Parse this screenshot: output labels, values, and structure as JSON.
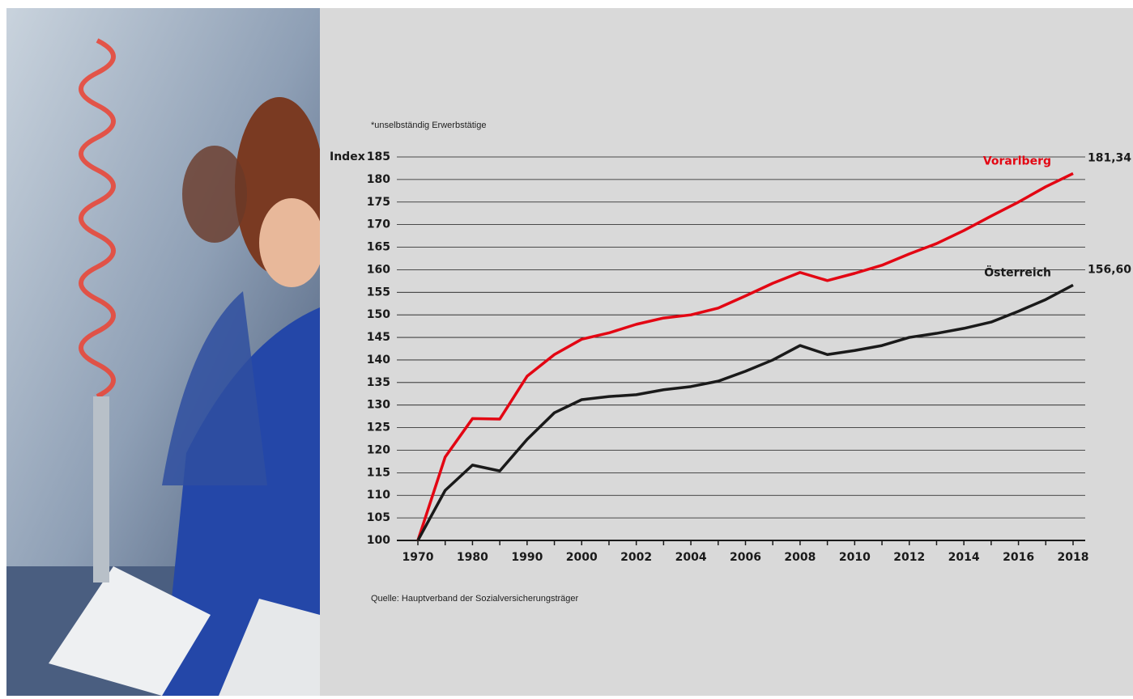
{
  "chart_data": {
    "type": "line",
    "note": "*unselbständig Erwerbstätige",
    "source": "Quelle: Hauptverband der Sozialversicherungsträger",
    "y_label": "Index",
    "categories": [
      "1970",
      null,
      "1980",
      null,
      "1990",
      null,
      "2000",
      null,
      "2002",
      null,
      "2004",
      null,
      "2006",
      null,
      "2008",
      null,
      "2010",
      null,
      "2012",
      null,
      "2014",
      null,
      "2016",
      null,
      "2018"
    ],
    "series": [
      {
        "name": "Vorarlberg",
        "color": "#e30613",
        "values": [
          100,
          118.5,
          127,
          126.9,
          136.4,
          141.2,
          144.6,
          146,
          147.9,
          149.3,
          150,
          151.5,
          154.2,
          157,
          159.4,
          157.6,
          159.2,
          161,
          163.5,
          165.8,
          168.7,
          171.9,
          175,
          178.4,
          181.34
        ],
        "value_labels": [
          null,
          null,
          null,
          null,
          null,
          null,
          null,
          null,
          null,
          null,
          null,
          null,
          null,
          null,
          null,
          null,
          null,
          null,
          null,
          null,
          null,
          null,
          null,
          null,
          "181,34"
        ]
      },
      {
        "name": "Österreich",
        "color": "#1a1a1a",
        "values": [
          100,
          111.1,
          116.7,
          115.4,
          122.4,
          128.3,
          131.2,
          131.9,
          132.3,
          133.4,
          134.1,
          135.3,
          137.5,
          140,
          143.2,
          141.2,
          142.1,
          143.2,
          145,
          145.9,
          147,
          148.4,
          150.8,
          153.4,
          156.6
        ],
        "value_labels": [
          null,
          null,
          null,
          null,
          null,
          null,
          null,
          null,
          null,
          null,
          null,
          null,
          null,
          null,
          null,
          null,
          null,
          null,
          null,
          null,
          null,
          null,
          null,
          null,
          "156,60"
        ]
      }
    ],
    "ylim": [
      100,
      185
    ],
    "yticks": [
      100,
      105,
      110,
      115,
      120,
      125,
      130,
      135,
      140,
      145,
      150,
      155,
      160,
      165,
      170,
      175,
      180,
      185
    ],
    "grid": true
  }
}
